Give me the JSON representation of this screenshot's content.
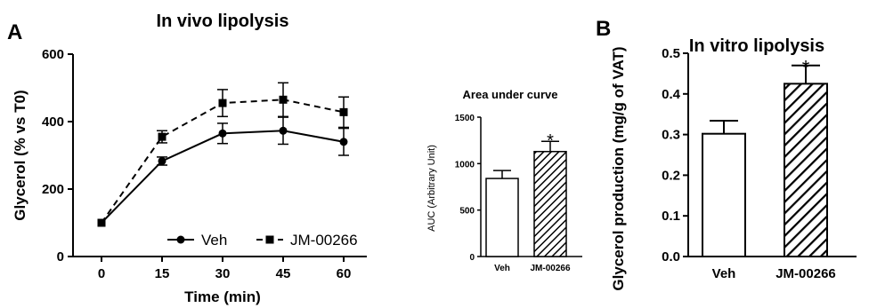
{
  "figure": {
    "panel_a_letter": "A",
    "panel_b_letter": "B"
  },
  "chart_data": [
    {
      "type": "line",
      "title": "In vivo lipolysis",
      "xlabel": "Time (min)",
      "ylabel": "Glycerol (% vs T0)",
      "x": [
        0,
        15,
        30,
        45,
        60
      ],
      "xticks": [
        "0",
        "15",
        "30",
        "45",
        "60"
      ],
      "yticks": [
        "0",
        "200",
        "400",
        "600"
      ],
      "ylim": [
        0,
        600
      ],
      "series": [
        {
          "name": "Veh",
          "marker": "circle",
          "line": "solid",
          "values": [
            100,
            283,
            365,
            373,
            340
          ],
          "errors": [
            0,
            12,
            30,
            40,
            40
          ]
        },
        {
          "name": "JM-00266",
          "marker": "square",
          "line": "dashed",
          "values": [
            100,
            355,
            455,
            465,
            428
          ],
          "errors": [
            0,
            18,
            40,
            50,
            45
          ]
        }
      ],
      "legend": "bottom-right"
    },
    {
      "type": "bar",
      "title": "Area under curve",
      "ylabel": "AUC (Arbitrary Unit)",
      "categories": [
        "Veh",
        "JM-00266"
      ],
      "values": [
        840,
        1130
      ],
      "errors": [
        85,
        110
      ],
      "ylim": [
        0,
        1500
      ],
      "yticks": [
        "0",
        "500",
        "1000",
        "1500"
      ],
      "fills": [
        "white",
        "hatched"
      ],
      "annotations": [
        "",
        "*"
      ]
    },
    {
      "type": "bar",
      "title": "In vitro lipolysis",
      "ylabel": "Glycerol production (mg/g of VAT)",
      "categories": [
        "Veh",
        "JM-00266"
      ],
      "values": [
        0.302,
        0.425
      ],
      "errors": [
        0.032,
        0.045
      ],
      "ylim": [
        0,
        0.5
      ],
      "yticks": [
        "0.0",
        "0.1",
        "0.2",
        "0.3",
        "0.4",
        "0.5"
      ],
      "fills": [
        "white",
        "hatched"
      ],
      "annotations": [
        "",
        "*"
      ]
    }
  ]
}
